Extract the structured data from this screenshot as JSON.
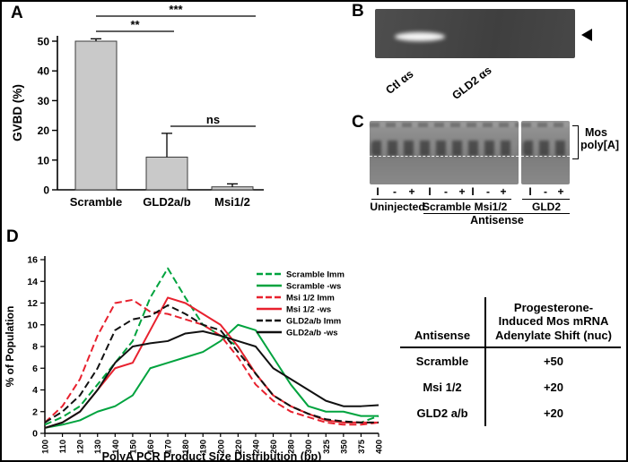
{
  "panels": {
    "a": "A",
    "b": "B",
    "c": "C",
    "d": "D"
  },
  "chart_data": [
    {
      "id": "gvbd-bar-chart",
      "type": "bar",
      "title": "",
      "xlabel": "",
      "ylabel": "GVBD (%)",
      "categories": [
        "Scramble",
        "GLD2a/b",
        "Msi1/2"
      ],
      "values": [
        50,
        11,
        1
      ],
      "errors": [
        0.8,
        8,
        1
      ],
      "ylim": [
        0,
        50
      ],
      "yticks": [
        0,
        10,
        20,
        30,
        40,
        50
      ],
      "bar_color": "#c9c9c9",
      "significance": [
        {
          "label": "***",
          "from": 0,
          "to": 2,
          "level": 0
        },
        {
          "label": "**",
          "from": 0,
          "to": 1,
          "level": 1
        },
        {
          "label": "ns",
          "from": 1,
          "to": 2,
          "level": 2
        }
      ]
    },
    {
      "id": "polya-line-chart",
      "type": "line",
      "title": "",
      "xlabel": "PolyA PCR Product Size Distribution (bp)",
      "ylabel": "% of Population",
      "categories": [
        "100",
        "110",
        "120",
        "130",
        "140",
        "150",
        "160",
        "170",
        "180",
        "190",
        "200",
        "220",
        "240",
        "260",
        "280",
        "300",
        "325",
        "350",
        "375",
        "400"
      ],
      "ylim": [
        0,
        16
      ],
      "yticks": [
        0,
        2,
        4,
        6,
        8,
        10,
        12,
        14,
        16
      ],
      "legend_position": "top-right",
      "grid": false,
      "series": [
        {
          "name": "Scramble Imm",
          "color": "#00a33e",
          "dash": true,
          "values": [
            0.8,
            1.5,
            2.5,
            4.5,
            6.5,
            8.5,
            12.5,
            15.2,
            12.5,
            10,
            9,
            8,
            5.5,
            3.5,
            2.5,
            1.8,
            1.2,
            1,
            1,
            1.6
          ]
        },
        {
          "name": "Scramble -ws",
          "color": "#00a33e",
          "dash": false,
          "values": [
            0.5,
            0.8,
            1.2,
            2,
            2.5,
            3.5,
            6,
            6.5,
            7,
            7.5,
            8.5,
            10,
            9.5,
            7,
            4.5,
            2.5,
            2,
            2,
            1.6,
            1.6
          ]
        },
        {
          "name": "Msi 1/2 Imm",
          "color": "#e8212e",
          "dash": true,
          "values": [
            1,
            2.5,
            5,
            9,
            12,
            12.3,
            11.2,
            11,
            10.5,
            10,
            9,
            7,
            4.5,
            3,
            2,
            1.5,
            1,
            0.8,
            0.8,
            1
          ]
        },
        {
          "name": "Msi 1/2 -ws",
          "color": "#e8212e",
          "dash": false,
          "values": [
            0.5,
            1,
            2,
            4,
            6,
            6.5,
            9.5,
            12.5,
            12,
            11,
            10,
            8,
            5.5,
            3.5,
            2.5,
            1.8,
            1.2,
            1,
            1,
            1
          ]
        },
        {
          "name": "GLD2a/b Imm",
          "color": "#111111",
          "dash": true,
          "values": [
            1,
            2,
            3.5,
            6,
            9.5,
            10.5,
            10.8,
            11.8,
            11,
            10,
            9.5,
            7.5,
            5.5,
            3.5,
            2.5,
            1.8,
            1.3,
            1.1,
            1,
            1
          ]
        },
        {
          "name": "GLD2a/b -ws",
          "color": "#111111",
          "dash": false,
          "values": [
            0.5,
            1,
            2,
            4,
            6.5,
            8,
            8.3,
            8.5,
            9.2,
            9.4,
            9,
            8.5,
            8,
            6,
            5,
            4,
            3,
            2.5,
            2.5,
            2.6
          ]
        }
      ]
    }
  ],
  "panel_b": {
    "lane_labels": [
      "Ctl αs",
      "GLD2 αs"
    ]
  },
  "panel_c": {
    "band_label_line1": "Mos",
    "band_label_line2": "poly[A]",
    "lane_marks": [
      "I",
      "-",
      "+",
      "I",
      "-",
      "+",
      "I",
      "-",
      "+",
      "I",
      "-",
      "+"
    ],
    "groups": [
      "Uninjected",
      "Scramble",
      "Msi1/2",
      "GLD2"
    ],
    "antisense_label": "Antisense"
  },
  "table": {
    "col1_header": "Antisense",
    "col2_header_lines": [
      "Progesterone-",
      "Induced Mos mRNA",
      "Adenylate Shift (nuc)"
    ],
    "rows": [
      {
        "antisense": "Scramble",
        "shift": "+50"
      },
      {
        "antisense": "Msi 1/2",
        "shift": "+20"
      },
      {
        "antisense": "GLD2 a/b",
        "shift": "+20"
      }
    ]
  }
}
